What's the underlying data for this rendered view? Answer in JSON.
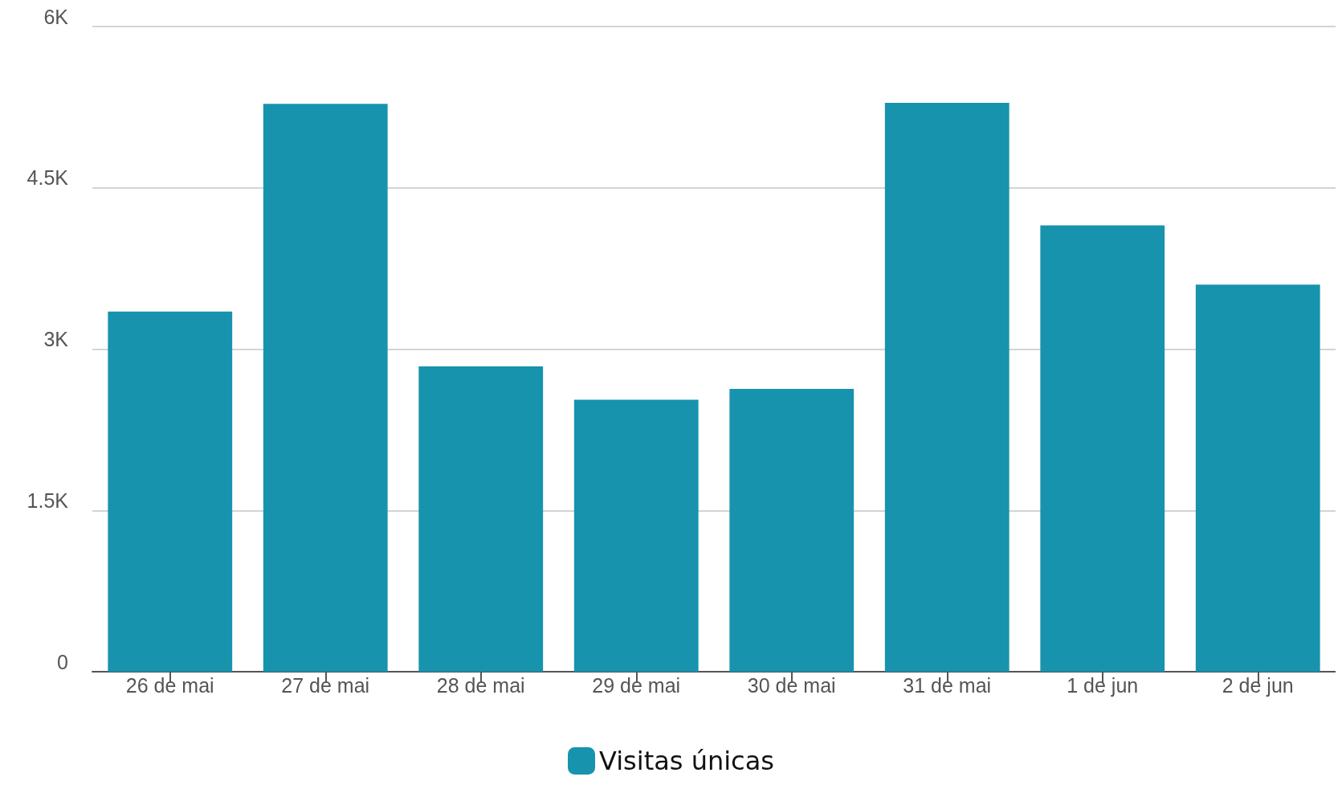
{
  "chart_data": {
    "type": "bar",
    "categories": [
      "26 de mai",
      "27 de mai",
      "28 de mai",
      "29 de mai",
      "30 de mai",
      "31 de mai",
      "1 de jun",
      "2 de jun"
    ],
    "series": [
      {
        "name": "Visitas únicas",
        "color": "#1793ae",
        "values": [
          3350,
          5280,
          2840,
          2530,
          2630,
          5290,
          4150,
          3600
        ]
      }
    ],
    "ylim": [
      0,
      6000
    ],
    "yticks": [
      0,
      {
        "value": 1500,
        "label": "1.5K"
      },
      {
        "value": 3000,
        "label": "3K"
      },
      {
        "value": 4500,
        "label": "4.5K"
      },
      {
        "value": 6000,
        "label": "6K"
      }
    ],
    "grid": "y",
    "legend": "bottom"
  }
}
